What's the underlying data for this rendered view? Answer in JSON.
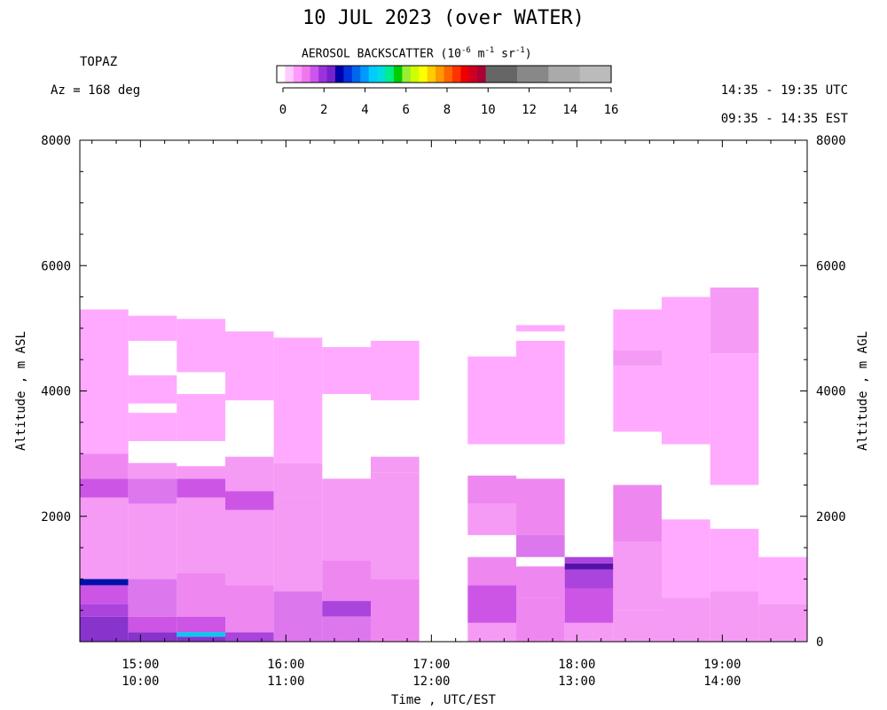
{
  "header": {
    "title": "10 JUL 2023 (over WATER)",
    "instrument": "TOPAZ",
    "azimuth": "Az = 168 deg",
    "utc_range": "14:35 - 19:35 UTC",
    "est_range": "09:35 - 14:35 EST"
  },
  "colorbar": {
    "label": "AEROSOL BACKSCATTER (10",
    "label_exp": "-6",
    "label_units": " m",
    "label_units_exp": "-1",
    "label_sr": " sr",
    "label_sr_exp": "-1",
    "label_close": ")",
    "ticks": [
      "0",
      "2",
      "4",
      "6",
      "8",
      "10",
      "12",
      "14",
      "16"
    ],
    "colors": [
      "#ffffff",
      "#ffccff",
      "#ff99ff",
      "#ee77ee",
      "#cc55ee",
      "#9933dd",
      "#7722cc",
      "#0000aa",
      "#0033dd",
      "#0066ee",
      "#0099ff",
      "#00ccff",
      "#00dddd",
      "#00ee88",
      "#00cc00",
      "#99ee33",
      "#ccff00",
      "#ffff00",
      "#ffcc00",
      "#ff9900",
      "#ff6600",
      "#ff3300",
      "#ee0000",
      "#cc0022",
      "#aa0033",
      "#666666",
      "#888888",
      "#aaaaaa",
      "#bbbbbb"
    ]
  },
  "axes": {
    "y_left_label": "Altitude , m ASL",
    "y_right_label": "Altitude , m AGL",
    "x_label": "Time , UTC/EST",
    "y_left_ticks": [
      "8000",
      "6000",
      "4000",
      "2000"
    ],
    "y_right_ticks": [
      "8000",
      "6000",
      "4000",
      "2000",
      "0"
    ],
    "x_ticks_utc": [
      "15:00",
      "16:00",
      "17:00",
      "18:00",
      "19:00"
    ],
    "x_ticks_est": [
      "10:00",
      "11:00",
      "12:00",
      "13:00",
      "14:00"
    ]
  },
  "chart_data": {
    "type": "heatmap",
    "title": "10 JUL 2023 (over WATER)",
    "xlabel": "Time , UTC/EST",
    "ylabel": "Altitude , m ASL",
    "ylabel_right": "Altitude , m AGL",
    "x_range_utc": [
      "14:35",
      "19:35"
    ],
    "ylim": [
      0,
      8000
    ],
    "color_scale_range": [
      0,
      16
    ],
    "color_scale_units": "10^-6 m^-1 sr^-1",
    "columns": [
      {
        "start": "14:35",
        "end": "14:55",
        "top": 5300,
        "layers": [
          {
            "from": 0,
            "to": 400,
            "value": 2.0
          },
          {
            "from": 400,
            "to": 600,
            "value": 1.5
          },
          {
            "from": 600,
            "to": 900,
            "value": 1.2
          },
          {
            "from": 900,
            "to": 1000,
            "value": 3.6
          },
          {
            "from": 1000,
            "to": 2300,
            "value": 0.7
          },
          {
            "from": 2300,
            "to": 2600,
            "value": 1.2
          },
          {
            "from": 2600,
            "to": 3000,
            "value": 0.8
          },
          {
            "from": 3000,
            "to": 5300,
            "value": 0.5
          }
        ]
      },
      {
        "start": "14:55",
        "end": "15:15",
        "top": 5200,
        "layers": [
          {
            "from": 0,
            "to": 150,
            "value": 2.2
          },
          {
            "from": 150,
            "to": 400,
            "value": 1.4
          },
          {
            "from": 400,
            "to": 1000,
            "value": 1.0
          },
          {
            "from": 1000,
            "to": 2200,
            "value": 0.6
          },
          {
            "from": 2200,
            "to": 2600,
            "value": 1.0
          },
          {
            "from": 2600,
            "to": 2850,
            "value": 0.7
          },
          {
            "from": 2850,
            "to": 3200,
            "value": 0.0
          },
          {
            "from": 3200,
            "to": 3650,
            "value": 0.5
          },
          {
            "from": 3650,
            "to": 3800,
            "value": 0.0
          },
          {
            "from": 3800,
            "to": 4250,
            "value": 0.5
          },
          {
            "from": 4250,
            "to": 4800,
            "value": 0.0
          },
          {
            "from": 4800,
            "to": 5200,
            "value": 0.5
          }
        ]
      },
      {
        "start": "15:15",
        "end": "15:35",
        "top": 5150,
        "layers": [
          {
            "from": 0,
            "to": 80,
            "value": 2.0
          },
          {
            "from": 80,
            "to": 150,
            "value": 4.6
          },
          {
            "from": 150,
            "to": 400,
            "value": 1.4
          },
          {
            "from": 400,
            "to": 1100,
            "value": 0.8
          },
          {
            "from": 1100,
            "to": 2300,
            "value": 0.6
          },
          {
            "from": 2300,
            "to": 2600,
            "value": 1.4
          },
          {
            "from": 2600,
            "to": 2800,
            "value": 0.7
          },
          {
            "from": 2800,
            "to": 3200,
            "value": 0.0
          },
          {
            "from": 3200,
            "to": 3950,
            "value": 0.5
          },
          {
            "from": 3950,
            "to": 4300,
            "value": 0.0
          },
          {
            "from": 4300,
            "to": 5150,
            "value": 0.5
          }
        ]
      },
      {
        "start": "15:35",
        "end": "15:55",
        "top": 4950,
        "layers": [
          {
            "from": 0,
            "to": 150,
            "value": 1.8
          },
          {
            "from": 150,
            "to": 900,
            "value": 0.8
          },
          {
            "from": 900,
            "to": 2100,
            "value": 0.6
          },
          {
            "from": 2100,
            "to": 2400,
            "value": 1.2
          },
          {
            "from": 2400,
            "to": 2950,
            "value": 0.6
          },
          {
            "from": 2950,
            "to": 3850,
            "value": 0.0
          },
          {
            "from": 3850,
            "to": 4950,
            "value": 0.5
          }
        ]
      },
      {
        "start": "15:55",
        "end": "16:15",
        "top": 4850,
        "layers": [
          {
            "from": 0,
            "to": 800,
            "value": 1.0
          },
          {
            "from": 800,
            "to": 2300,
            "value": 0.6
          },
          {
            "from": 2300,
            "to": 2850,
            "value": 0.7
          },
          {
            "from": 2850,
            "to": 4850,
            "value": 0.5
          }
        ]
      },
      {
        "start": "16:15",
        "end": "16:35",
        "top": 4700,
        "layers": [
          {
            "from": 0,
            "to": 400,
            "value": 1.0
          },
          {
            "from": 400,
            "to": 650,
            "value": 1.6
          },
          {
            "from": 650,
            "to": 1300,
            "value": 0.8
          },
          {
            "from": 1300,
            "to": 2600,
            "value": 0.6
          },
          {
            "from": 2600,
            "to": 3950,
            "value": 0.0
          },
          {
            "from": 3950,
            "to": 4700,
            "value": 0.5
          }
        ]
      },
      {
        "start": "16:35",
        "end": "16:55",
        "top": 4800,
        "layers": [
          {
            "from": 0,
            "to": 1000,
            "value": 0.8
          },
          {
            "from": 1000,
            "to": 2700,
            "value": 0.6
          },
          {
            "from": 2700,
            "to": 2950,
            "value": 0.6
          },
          {
            "from": 2950,
            "to": 3850,
            "value": 0.0
          },
          {
            "from": 3850,
            "to": 4800,
            "value": 0.5
          }
        ]
      },
      {
        "start": "17:15",
        "end": "17:35",
        "top": 4550,
        "layers": [
          {
            "from": 0,
            "to": 300,
            "value": 0.6
          },
          {
            "from": 300,
            "to": 900,
            "value": 1.2
          },
          {
            "from": 900,
            "to": 1350,
            "value": 0.9
          },
          {
            "from": 1350,
            "to": 1700,
            "value": 0.0
          },
          {
            "from": 1700,
            "to": 2200,
            "value": 0.6
          },
          {
            "from": 2200,
            "to": 2650,
            "value": 0.8
          },
          {
            "from": 2650,
            "to": 3150,
            "value": 0.0
          },
          {
            "from": 3150,
            "to": 4550,
            "value": 0.5
          }
        ]
      },
      {
        "start": "17:35",
        "end": "17:55",
        "top": 5050,
        "layers": [
          {
            "from": 0,
            "to": 700,
            "value": 0.8
          },
          {
            "from": 700,
            "to": 1200,
            "value": 0.9
          },
          {
            "from": 1200,
            "to": 1350,
            "value": 0.0
          },
          {
            "from": 1350,
            "to": 1700,
            "value": 1.0
          },
          {
            "from": 1700,
            "to": 2600,
            "value": 0.8
          },
          {
            "from": 2600,
            "to": 3150,
            "value": 0.0
          },
          {
            "from": 3150,
            "to": 4800,
            "value": 0.5
          },
          {
            "from": 4800,
            "to": 4950,
            "value": 0.0
          },
          {
            "from": 4950,
            "to": 5050,
            "value": 0.5
          }
        ]
      },
      {
        "start": "17:55",
        "end": "18:15",
        "top": 1350,
        "layers": [
          {
            "from": 0,
            "to": 300,
            "value": 0.6
          },
          {
            "from": 300,
            "to": 850,
            "value": 1.4
          },
          {
            "from": 850,
            "to": 1150,
            "value": 1.8
          },
          {
            "from": 1150,
            "to": 1250,
            "value": 3.0
          },
          {
            "from": 1250,
            "to": 1350,
            "value": 1.6
          }
        ]
      },
      {
        "start": "18:15",
        "end": "18:35",
        "top": 5300,
        "layers": [
          {
            "from": 0,
            "to": 500,
            "value": 0.6
          },
          {
            "from": 500,
            "to": 1600,
            "value": 0.6
          },
          {
            "from": 1600,
            "to": 2500,
            "value": 0.8
          },
          {
            "from": 2500,
            "to": 3350,
            "value": 0.0
          },
          {
            "from": 3350,
            "to": 4400,
            "value": 0.5
          },
          {
            "from": 4400,
            "to": 4650,
            "value": 0.7
          },
          {
            "from": 4650,
            "to": 5300,
            "value": 0.5
          }
        ]
      },
      {
        "start": "18:35",
        "end": "18:55",
        "top": 5500,
        "layers": [
          {
            "from": 0,
            "to": 700,
            "value": 0.6
          },
          {
            "from": 700,
            "to": 1950,
            "value": 0.5
          },
          {
            "from": 1950,
            "to": 3150,
            "value": 0.0
          },
          {
            "from": 3150,
            "to": 5500,
            "value": 0.5
          }
        ]
      },
      {
        "start": "18:55",
        "end": "19:15",
        "top": 5650,
        "layers": [
          {
            "from": 0,
            "to": 800,
            "value": 0.6
          },
          {
            "from": 800,
            "to": 1800,
            "value": 0.5
          },
          {
            "from": 1800,
            "to": 2500,
            "value": 0.0
          },
          {
            "from": 2500,
            "to": 4600,
            "value": 0.5
          },
          {
            "from": 4600,
            "to": 5650,
            "value": 0.6
          }
        ]
      },
      {
        "start": "19:15",
        "end": "19:35",
        "top": 1350,
        "layers": [
          {
            "from": 0,
            "to": 600,
            "value": 0.6
          },
          {
            "from": 600,
            "to": 1350,
            "value": 0.5
          }
        ]
      }
    ]
  }
}
